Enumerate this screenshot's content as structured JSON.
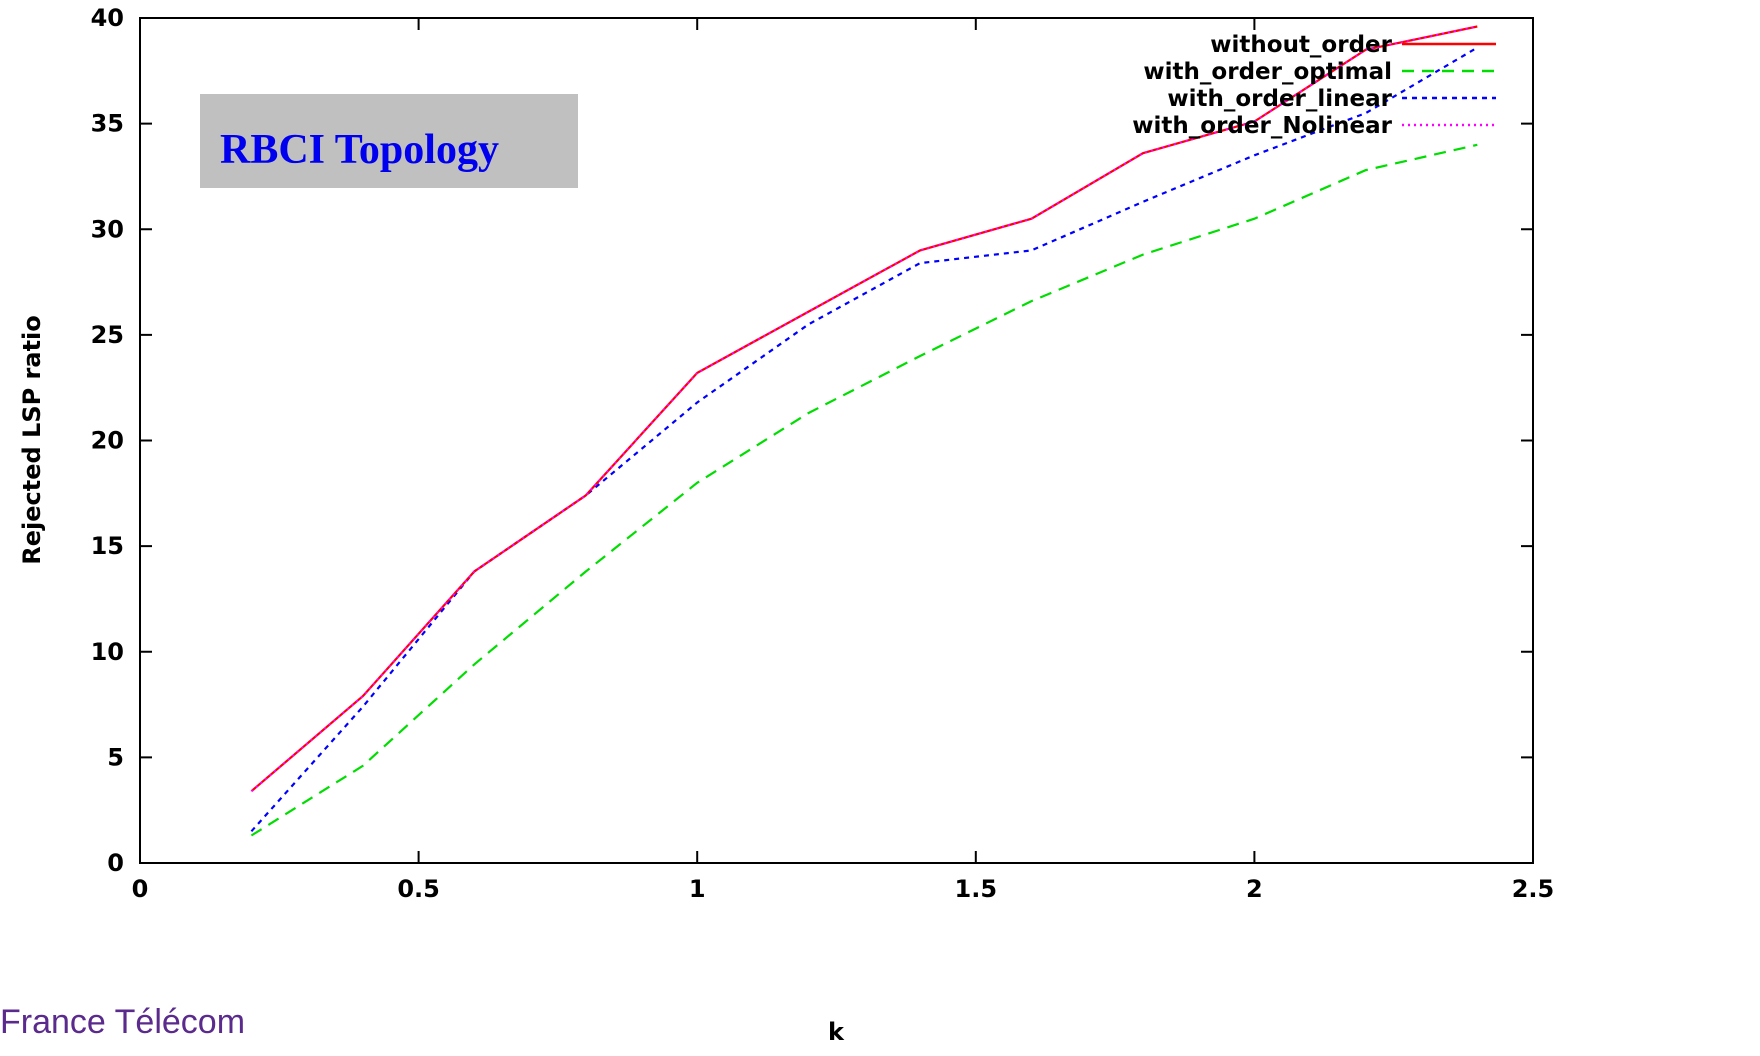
{
  "chart_data": {
    "type": "line",
    "title": "",
    "xlabel": "k",
    "ylabel": "Rejected LSP ratio",
    "xlim": [
      0,
      2.5
    ],
    "ylim": [
      0,
      40
    ],
    "x_ticks": [
      0,
      0.5,
      1,
      1.5,
      2,
      2.5
    ],
    "x_tick_labels": [
      "0",
      "0.5",
      "1",
      "1.5",
      "2",
      "2.5"
    ],
    "y_ticks": [
      0,
      5,
      10,
      15,
      20,
      25,
      30,
      35,
      40
    ],
    "y_tick_labels": [
      "0",
      "5",
      "10",
      "15",
      "20",
      "25",
      "30",
      "35",
      "40"
    ],
    "grid": false,
    "legend_position": "top-right",
    "annotation": "RBCI Topology",
    "x": [
      0.2,
      0.4,
      0.6,
      0.8,
      1.0,
      1.2,
      1.4,
      1.6,
      1.8,
      2.0,
      2.2,
      2.4
    ],
    "series": [
      {
        "name": "without_order",
        "color": "#ff0000",
        "dash": "solid",
        "values": [
          3.4,
          7.9,
          13.8,
          17.4,
          23.2,
          26.1,
          29.0,
          30.5,
          33.6,
          35.1,
          38.5,
          39.6
        ]
      },
      {
        "name": "with_order_optimal",
        "color": "#00dd00",
        "dash": "long",
        "values": [
          1.3,
          4.6,
          9.4,
          13.8,
          18.0,
          21.3,
          24.0,
          26.6,
          28.8,
          30.5,
          32.8,
          34.0
        ]
      },
      {
        "name": "with_order_linear",
        "color": "#0000ff",
        "dash": "short",
        "values": [
          1.5,
          7.4,
          13.8,
          17.4,
          21.8,
          25.5,
          28.4,
          29.0,
          31.3,
          33.5,
          35.5,
          38.6
        ]
      },
      {
        "name": "with_order_Nolinear",
        "color": "#ff00ff",
        "dash": "dot",
        "values": [
          3.4,
          7.9,
          13.8,
          17.4,
          23.2,
          26.1,
          29.0,
          30.5,
          33.6,
          35.1,
          38.5,
          39.6
        ]
      }
    ]
  },
  "footer": {
    "text": "France Télécom"
  }
}
